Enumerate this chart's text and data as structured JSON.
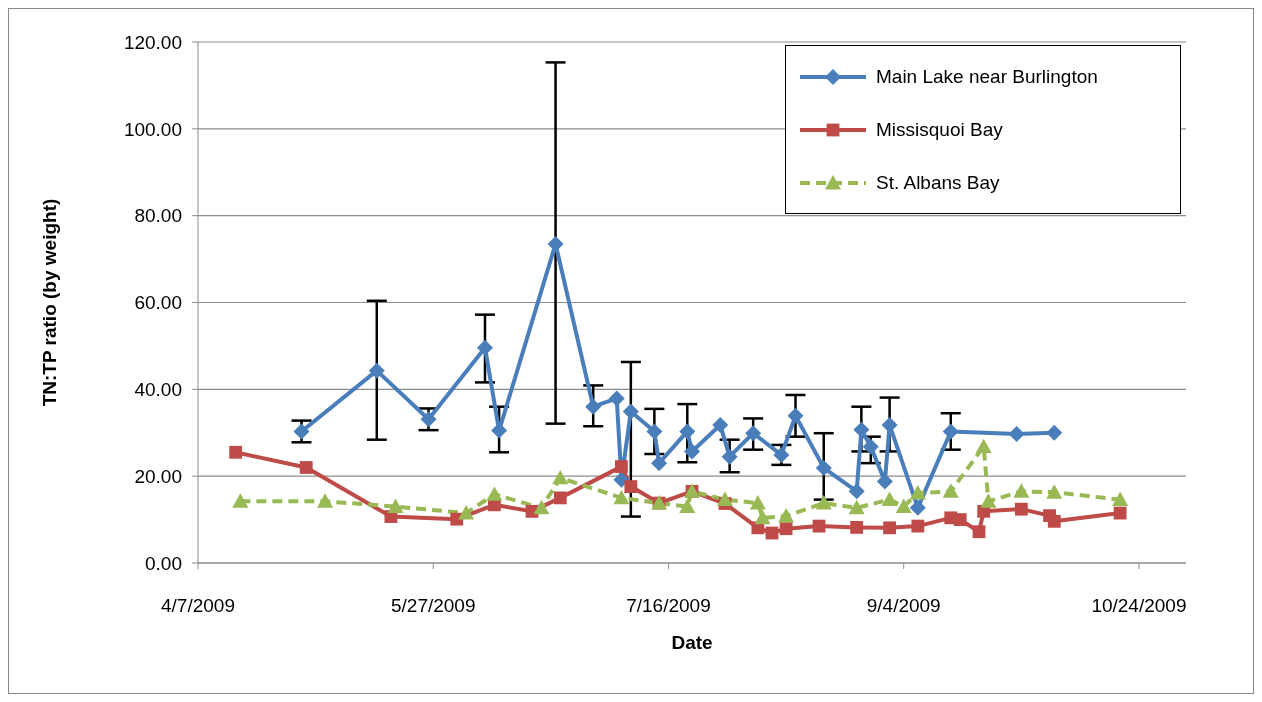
{
  "chart_data": {
    "type": "line",
    "xlabel": "Date",
    "ylabel": "TN:TP ratio (by weight)",
    "xlim": [
      "2009-04-07",
      "2009-11-03"
    ],
    "xticks": [
      {
        "value": "2009-04-07",
        "label": "4/7/2009"
      },
      {
        "value": "2009-05-27",
        "label": "5/27/2009"
      },
      {
        "value": "2009-07-16",
        "label": "7/16/2009"
      },
      {
        "value": "2009-09-04",
        "label": "9/4/2009"
      },
      {
        "value": "2009-10-24",
        "label": "10/24/2009"
      }
    ],
    "ylim": [
      0,
      120
    ],
    "yticks": [
      {
        "value": 0,
        "label": "0.00"
      },
      {
        "value": 20,
        "label": "20.00"
      },
      {
        "value": 40,
        "label": "40.00"
      },
      {
        "value": 60,
        "label": "60.00"
      },
      {
        "value": 80,
        "label": "80.00"
      },
      {
        "value": 100,
        "label": "100.00"
      },
      {
        "value": 120,
        "label": "120.00"
      }
    ],
    "grid": "y",
    "legend": "top right",
    "series": [
      {
        "name": "Main Lake near Burlington",
        "color": "#4a7ebb",
        "marker": "diamond",
        "line_style": "solid",
        "x": [
          "2009-04-29",
          "2009-05-15",
          "2009-05-26",
          "2009-06-07",
          "2009-06-10",
          "2009-06-22",
          "2009-06-30",
          "2009-07-05",
          "2009-07-06",
          "2009-07-08",
          "2009-07-13",
          "2009-07-14",
          "2009-07-20",
          "2009-07-21",
          "2009-07-27",
          "2009-07-29",
          "2009-08-03",
          "2009-08-09",
          "2009-08-12",
          "2009-08-18",
          "2009-08-25",
          "2009-08-26",
          "2009-08-28",
          "2009-08-31",
          "2009-09-01",
          "2009-09-07",
          "2009-09-14",
          "2009-09-28",
          "2009-10-06"
        ],
        "values": [
          30.3,
          44.3,
          33.1,
          49.6,
          30.5,
          73.5,
          36.0,
          37.9,
          19.2,
          34.9,
          30.3,
          23.0,
          30.3,
          25.7,
          31.8,
          24.5,
          29.9,
          24.9,
          33.9,
          21.9,
          16.5,
          30.7,
          26.8,
          18.8,
          31.8,
          12.7,
          30.3,
          29.7,
          30.0
        ],
        "errors": [
          [
            27.8,
            32.8
          ],
          [
            28.4,
            60.4
          ],
          [
            30.6,
            35.6
          ],
          [
            41.6,
            57.2
          ],
          [
            25.5,
            36.0
          ],
          [
            32.1,
            115.3
          ],
          [
            31.5,
            40.9
          ],
          null,
          null,
          [
            10.7,
            46.3
          ],
          [
            25.1,
            35.5
          ],
          null,
          [
            23.2,
            36.6
          ],
          null,
          null,
          [
            20.9,
            28.4
          ],
          [
            26.1,
            33.3
          ],
          [
            22.6,
            27.2
          ],
          [
            29.1,
            38.7
          ],
          [
            14.6,
            29.9
          ],
          null,
          [
            25.7,
            36.0
          ],
          [
            23.0,
            29.1
          ],
          null,
          [
            25.7,
            38.1
          ],
          null,
          [
            26.1,
            34.5
          ],
          null,
          null
        ]
      },
      {
        "name": "Missisquoi Bay",
        "color": "#be4b48",
        "marker": "square",
        "line_style": "solid",
        "x": [
          "2009-04-15",
          "2009-04-30",
          "2009-05-18",
          "2009-06-01",
          "2009-06-09",
          "2009-06-17",
          "2009-06-23",
          "2009-07-06",
          "2009-07-08",
          "2009-07-14",
          "2009-07-21",
          "2009-07-28",
          "2009-08-04",
          "2009-08-07",
          "2009-08-10",
          "2009-08-17",
          "2009-08-25",
          "2009-09-01",
          "2009-09-07",
          "2009-09-14",
          "2009-09-16",
          "2009-09-20",
          "2009-09-21",
          "2009-09-29",
          "2009-10-05",
          "2009-10-06",
          "2009-10-20"
        ],
        "values": [
          25.5,
          22.0,
          10.7,
          10.1,
          13.4,
          11.9,
          15.0,
          22.2,
          17.6,
          13.8,
          16.5,
          13.7,
          8.1,
          6.9,
          7.9,
          8.5,
          8.2,
          8.1,
          8.5,
          10.4,
          10.0,
          7.2,
          11.9,
          12.4,
          10.9,
          9.6,
          11.5
        ]
      },
      {
        "name": "St. Albans Bay",
        "color": "#98b954",
        "marker": "triangle",
        "line_style": "dashed",
        "x": [
          "2009-04-16",
          "2009-05-04",
          "2009-05-19",
          "2009-06-03",
          "2009-06-09",
          "2009-06-19",
          "2009-06-23",
          "2009-07-06",
          "2009-07-14",
          "2009-07-20",
          "2009-07-21",
          "2009-07-28",
          "2009-08-04",
          "2009-08-05",
          "2009-08-10",
          "2009-08-18",
          "2009-08-25",
          "2009-09-01",
          "2009-09-04",
          "2009-09-07",
          "2009-09-14",
          "2009-09-21",
          "2009-09-22",
          "2009-09-29",
          "2009-10-06",
          "2009-10-20"
        ],
        "values": [
          14.2,
          14.2,
          13.0,
          11.5,
          15.8,
          12.7,
          19.6,
          15.0,
          13.8,
          13.0,
          16.5,
          14.6,
          13.8,
          10.4,
          10.8,
          13.8,
          12.7,
          14.6,
          13.0,
          16.1,
          16.5,
          26.8,
          14.2,
          16.5,
          16.3,
          14.6
        ]
      }
    ]
  }
}
